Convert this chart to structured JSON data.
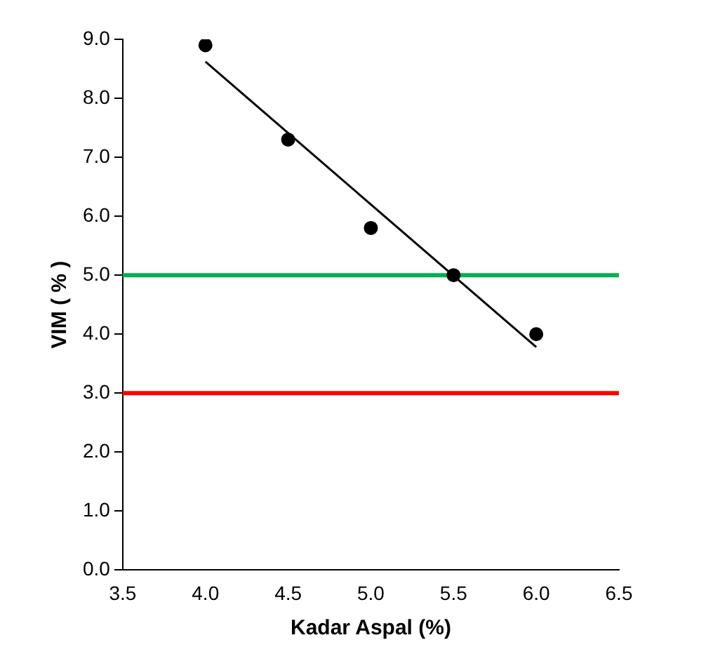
{
  "chart_data": {
    "type": "scatter",
    "xlabel": "Kadar Aspal (%)",
    "ylabel": "VIM ( % )",
    "xlim": [
      3.5,
      6.5
    ],
    "xticks": [
      3.5,
      {
        "value": 4,
        "label": "4.0"
      },
      4.5,
      {
        "value": 5,
        "label": "5.0"
      },
      5.5,
      {
        "value": 6,
        "label": "6.0"
      },
      6.5
    ],
    "ylim": [
      0,
      9
    ],
    "yticks": [
      {
        "value": 0,
        "label": "0.0"
      },
      {
        "value": 1,
        "label": "1.0"
      },
      {
        "value": 2,
        "label": "2.0"
      },
      {
        "value": 3,
        "label": "3.0"
      },
      {
        "value": 4,
        "label": "4.0"
      },
      {
        "value": 5,
        "label": "5.0"
      },
      {
        "value": 6,
        "label": "6.0"
      },
      {
        "value": 7,
        "label": "7.0"
      },
      {
        "value": 8,
        "label": "8.0"
      },
      {
        "value": 9,
        "label": "9.0"
      }
    ],
    "grid": false,
    "legend": false,
    "marker": "circle",
    "series": [
      {
        "color": "#000000",
        "x": [
          4.0,
          4.5,
          5.0,
          5.5,
          6.0
        ],
        "values": [
          8.9,
          7.3,
          5.8,
          5.0,
          4.0
        ]
      },
      {
        "type": "line",
        "color": "#000000",
        "x": [
          4.0,
          6.0
        ],
        "values": [
          8.62,
          3.78
        ],
        "marker": "none",
        "line_style": "solid"
      }
    ],
    "ref_lines": [
      {
        "axis": "y",
        "value": 5,
        "label": null,
        "color": "#00b050"
      },
      {
        "axis": "y",
        "value": 3,
        "label": null,
        "color": "#ff0000"
      }
    ]
  }
}
